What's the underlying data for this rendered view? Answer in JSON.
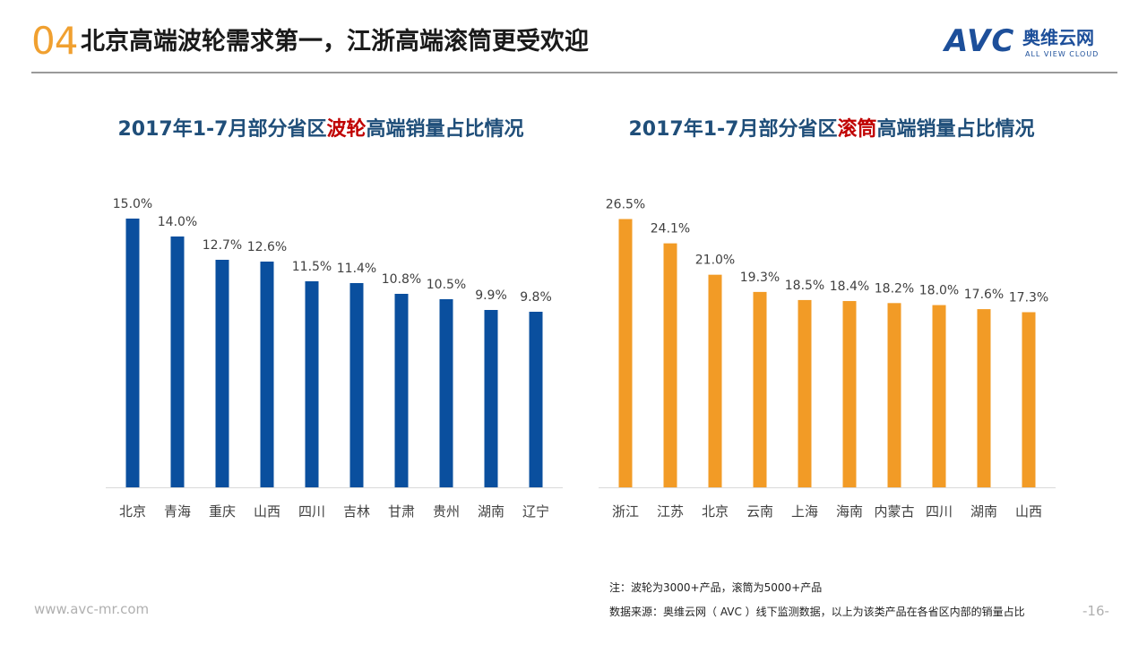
{
  "header": {
    "number": "04",
    "title": "北京高端波轮需求第一，江浙高端滚筒更受欢迎"
  },
  "logo": {
    "avc": "AVC",
    "cn": "奥维云网",
    "en": "ALL VIEW CLOUD"
  },
  "colors": {
    "accent": "#f0a030",
    "blue_bar": "#0a4f9e",
    "orange_bar": "#f29b26",
    "title_blue": "#1f4e79",
    "highlight_red": "#c00000"
  },
  "chart_data": [
    {
      "type": "bar",
      "title_prefix": "2017年1-7月部分省区",
      "title_highlight": "波轮",
      "title_suffix": "高端销量占比情况",
      "categories": [
        "北京",
        "青海",
        "重庆",
        "山西",
        "四川",
        "吉林",
        "甘肃",
        "贵州",
        "湖南",
        "辽宁"
      ],
      "values": [
        15.0,
        14.0,
        12.7,
        12.6,
        11.5,
        11.4,
        10.8,
        10.5,
        9.9,
        9.8
      ],
      "labels": [
        "15.0%",
        "14.0%",
        "12.7%",
        "12.6%",
        "11.5%",
        "11.4%",
        "10.8%",
        "10.5%",
        "9.9%",
        "9.8%"
      ],
      "ylim": [
        0,
        16.5
      ],
      "color": "#0a4f9e"
    },
    {
      "type": "bar",
      "title_prefix": "2017年1-7月部分省区",
      "title_highlight": "滚筒",
      "title_suffix": "高端销量占比情况",
      "categories": [
        "浙江",
        "江苏",
        "北京",
        "云南",
        "上海",
        "海南",
        "内蒙古",
        "四川",
        "湖南",
        "山西"
      ],
      "values": [
        26.5,
        24.1,
        21.0,
        19.3,
        18.5,
        18.4,
        18.2,
        18.0,
        17.6,
        17.3
      ],
      "labels": [
        "26.5%",
        "24.1%",
        "21.0%",
        "19.3%",
        "18.5%",
        "18.4%",
        "18.2%",
        "18.0%",
        "17.6%",
        "17.3%"
      ],
      "ylim": [
        0,
        29.2
      ],
      "color": "#f29b26"
    }
  ],
  "footer": {
    "note": "注：波轮为3000+产品，滚筒为5000+产品",
    "source": "数据来源：奥维云网（ AVC ）线下监测数据，以上为该类产品在各省区内部的销量占比",
    "website": "www.avc-mr.com",
    "page": "-16-"
  }
}
